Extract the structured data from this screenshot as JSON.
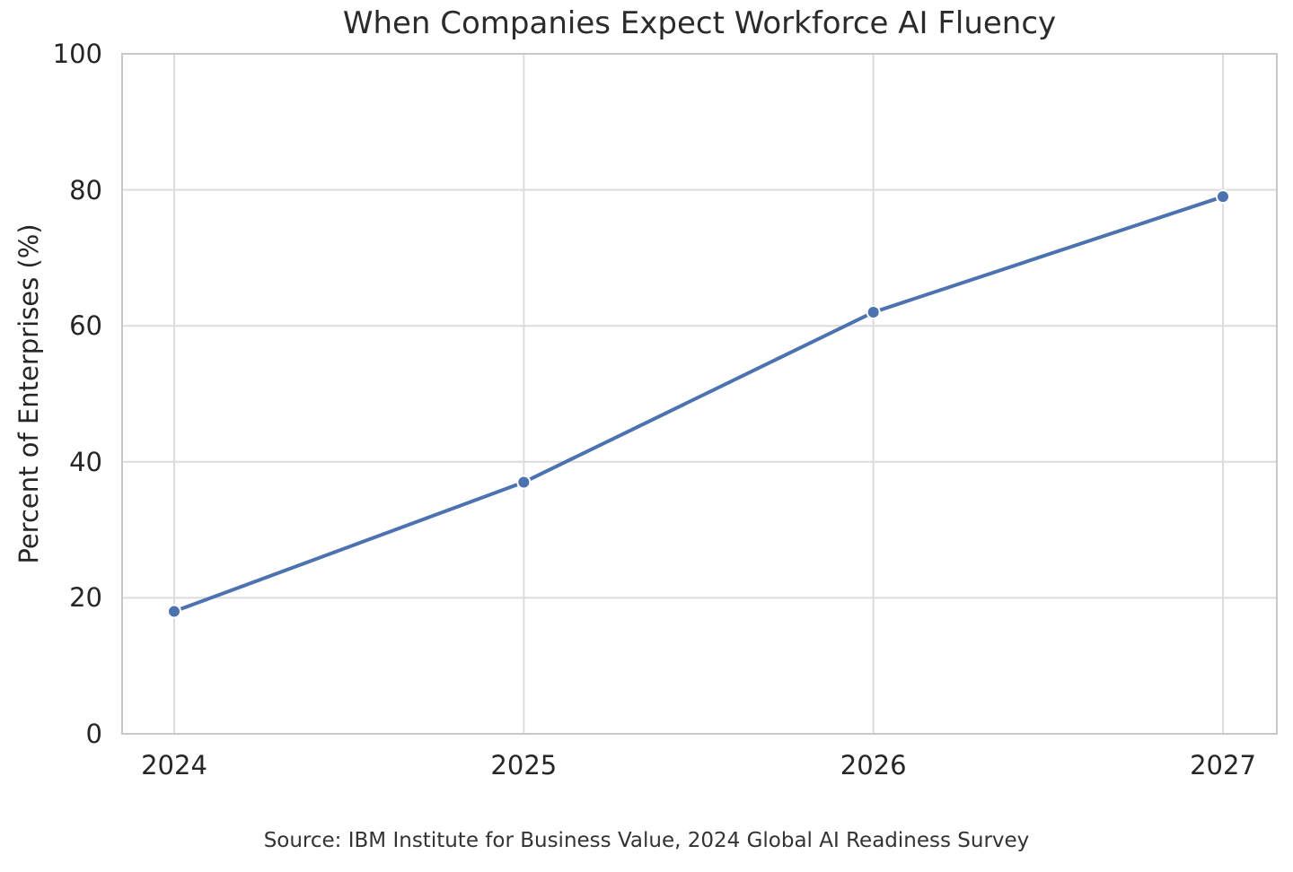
{
  "chart_data": {
    "type": "line",
    "title": "When Companies Expect Workforce AI Fluency",
    "categories": [
      "2024",
      "2025",
      "2026",
      "2027"
    ],
    "values": [
      18,
      37,
      62,
      79
    ],
    "xlabel": "",
    "ylabel": "Percent of Enterprises (%)",
    "ylim": [
      0,
      100
    ],
    "yticks": [
      0,
      20,
      40,
      60,
      80,
      100
    ],
    "grid": true,
    "legend_position": "none",
    "line_color": "#4C72B0",
    "marker": "circle",
    "marker_edge_color": "#ffffff",
    "source": "Source: IBM Institute for Business Value, 2024 Global AI Readiness Survey"
  }
}
